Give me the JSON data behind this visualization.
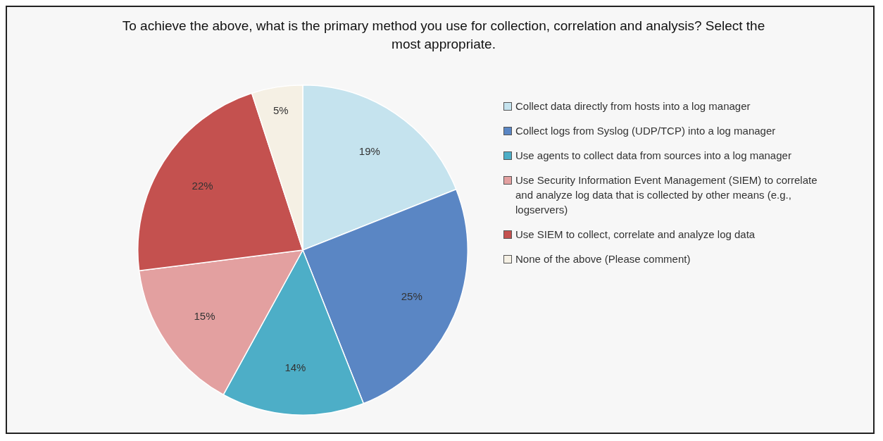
{
  "chart_data": {
    "type": "pie",
    "title": "To achieve the above, what is the primary method  you use for collection, correlation and analysis? Select the most appropriate.",
    "categories": [
      "Collect data directly from hosts into a log manager",
      "Collect logs from Syslog (UDP/TCP) into a log manager",
      "Use agents to collect data from sources into a log manager",
      "Use Security Information Event Management (SIEM) to correlate and analyze log data that is collected by other means (e.g., logservers)",
      "Use SIEM to collect, correlate and analyze log data",
      "None of the above (Please comment)"
    ],
    "values": [
      19,
      25,
      14,
      15,
      22,
      5
    ],
    "colors": [
      "#c5e3ee",
      "#5a86c4",
      "#4daec7",
      "#e3a0a0",
      "#c4514f",
      "#f5f0e4"
    ],
    "value_labels": [
      "19%",
      "25%",
      "14%",
      "15%",
      "22%",
      "5%"
    ],
    "legend": "right"
  }
}
